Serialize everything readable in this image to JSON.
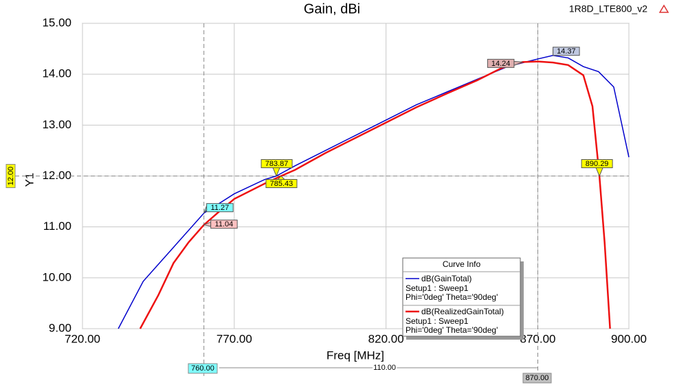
{
  "chart_data": {
    "type": "line",
    "title": "Gain, dBi",
    "project": "1R8D_LTE800_v2",
    "xlabel": "Freq [MHz]",
    "ylabel": "Y1",
    "xlim": [
      720,
      900
    ],
    "ylim": [
      9,
      15
    ],
    "xticks": [
      {
        "value": 720,
        "label": "720.00"
      },
      {
        "value": 770,
        "label": "770.00"
      },
      {
        "value": 820,
        "label": "820.00"
      },
      {
        "value": 870,
        "label": "870.00"
      },
      {
        "value": 900,
        "label": "900.00"
      }
    ],
    "yticks": [
      {
        "value": 9,
        "label": "9.00"
      },
      {
        "value": 10,
        "label": "10.00"
      },
      {
        "value": 11,
        "label": "11.00"
      },
      {
        "value": 12,
        "label": "12.00"
      },
      {
        "value": 13,
        "label": "13.00"
      },
      {
        "value": 14,
        "label": "14.00"
      },
      {
        "value": 15,
        "label": "15.00"
      }
    ],
    "grid": true,
    "legend_title": "Curve Info",
    "series": [
      {
        "name": "dB(GainTotal)",
        "color": "#0000cc",
        "details": [
          "Setup1 : Sweep1",
          "Phi='0deg' Theta='90deg'"
        ],
        "x": [
          731.8,
          740,
          750,
          760,
          770,
          780,
          783.87,
          790,
          800,
          810,
          820,
          830,
          840,
          850,
          860,
          870,
          875,
          880,
          885,
          890,
          895,
          900
        ],
        "values": [
          9.0,
          9.93,
          10.6,
          11.27,
          11.65,
          11.93,
          12.0,
          12.2,
          12.5,
          12.8,
          13.1,
          13.4,
          13.65,
          13.9,
          14.15,
          14.3,
          14.37,
          14.32,
          14.15,
          14.05,
          13.75,
          12.37
        ]
      },
      {
        "name": "dB(RealizedGainTotal)",
        "color": "#ee1111",
        "details": [
          "Setup1 : Sweep1",
          "Phi='0deg' Theta='90deg'"
        ],
        "x": [
          739,
          745,
          750,
          755,
          760,
          765,
          770,
          780,
          785.43,
          790,
          800,
          810,
          820,
          830,
          840,
          850,
          858,
          865,
          870,
          875,
          880,
          885,
          888,
          890.29,
          892,
          893.8
        ],
        "values": [
          9.0,
          9.66,
          10.29,
          10.7,
          11.04,
          11.3,
          11.55,
          11.85,
          12.0,
          12.12,
          12.45,
          12.75,
          13.05,
          13.35,
          13.62,
          13.88,
          14.12,
          14.24,
          14.25,
          14.23,
          14.18,
          13.98,
          13.37,
          12.0,
          10.7,
          9.0
        ]
      }
    ],
    "annotations": [
      {
        "text": "11.27",
        "x": 760,
        "y": 11.27,
        "color": "#7fffff"
      },
      {
        "text": "11.04",
        "x": 760,
        "y": 11.04,
        "color": "#ffc0c0"
      },
      {
        "text": "783.87",
        "x": 783.87,
        "y": 12.0,
        "color": "#ffff00"
      },
      {
        "text": "785.43",
        "x": 785.43,
        "y": 12.0,
        "color": "#ffff00"
      },
      {
        "text": "14.37",
        "x": 875,
        "y": 14.37,
        "color": "#c0c8e0"
      },
      {
        "text": "14.24",
        "x": 865,
        "y": 14.24,
        "color": "#e0b0b0"
      },
      {
        "text": "890.29",
        "x": 890.29,
        "y": 12.0,
        "color": "#ffff00"
      }
    ],
    "x_markers": [
      {
        "value": 760,
        "label": "760.00",
        "color": "#7fffff"
      },
      {
        "value": 870,
        "label": "870.00",
        "color": "#c0c0c0"
      }
    ],
    "x_delta": {
      "value": 110,
      "label": "110.00"
    },
    "y_marker": {
      "value": 12,
      "label": "12.00",
      "color": "#ffff00"
    }
  }
}
